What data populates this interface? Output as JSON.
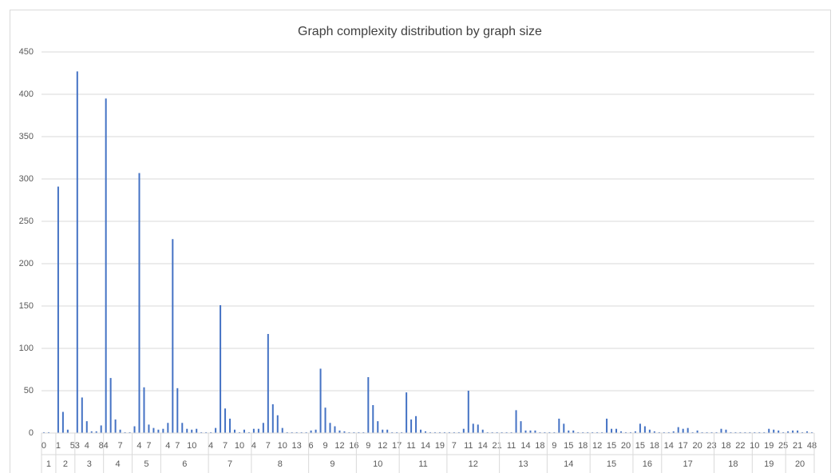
{
  "chart_data": {
    "type": "bar",
    "title": "Graph complexity distribution by graph size",
    "color": "#4472c4",
    "grid": true,
    "ylim": [
      0,
      450
    ],
    "yticks": [
      0,
      50,
      100,
      150,
      200,
      250,
      300,
      350,
      400,
      450
    ],
    "groups": [
      {
        "name": "1",
        "categories": [
          "0",
          null,
          null
        ],
        "values": [
          1,
          1,
          0
        ]
      },
      {
        "name": "2",
        "categories": [
          "1",
          null,
          null,
          "5"
        ],
        "values": [
          291,
          25,
          4,
          0
        ]
      },
      {
        "name": "3",
        "categories": [
          "3",
          null,
          "4",
          null,
          null,
          "8"
        ],
        "values": [
          427,
          42,
          14,
          2,
          2,
          9
        ]
      },
      {
        "name": "4",
        "categories": [
          "4",
          null,
          null,
          "7",
          null,
          null
        ],
        "values": [
          395,
          65,
          16,
          4,
          1,
          1
        ]
      },
      {
        "name": "5",
        "categories": [
          null,
          "4",
          null,
          "7",
          null,
          null
        ],
        "values": [
          8,
          307,
          54,
          10,
          6,
          4
        ]
      },
      {
        "name": "6",
        "categories": [
          null,
          "4",
          null,
          "7",
          null,
          null,
          "10",
          null,
          null,
          null
        ],
        "values": [
          5,
          12,
          229,
          53,
          12,
          5,
          4,
          5,
          1,
          1
        ]
      },
      {
        "name": "7",
        "categories": [
          "4",
          null,
          null,
          "7",
          null,
          null,
          "10",
          null,
          null
        ],
        "values": [
          1,
          6,
          151,
          29,
          17,
          4,
          1,
          4,
          1
        ]
      },
      {
        "name": "8",
        "categories": [
          "4",
          null,
          null,
          "7",
          null,
          null,
          "10",
          null,
          null,
          "13",
          null,
          null
        ],
        "values": [
          5,
          5,
          12,
          117,
          34,
          21,
          6,
          1,
          1,
          1,
          1,
          1
        ]
      },
      {
        "name": "9",
        "categories": [
          "6",
          null,
          null,
          "9",
          null,
          null,
          "12",
          null,
          null,
          "16"
        ],
        "values": [
          3,
          4,
          76,
          30,
          12,
          8,
          3,
          2,
          1,
          1
        ]
      },
      {
        "name": "10",
        "categories": [
          null,
          null,
          "9",
          null,
          null,
          "12",
          null,
          null,
          "17"
        ],
        "values": [
          1,
          1,
          66,
          33,
          14,
          4,
          4,
          1,
          1
        ]
      },
      {
        "name": "11",
        "categories": [
          null,
          null,
          "11",
          null,
          null,
          "14",
          null,
          null,
          "19",
          null
        ],
        "values": [
          1,
          48,
          16,
          20,
          4,
          2,
          1,
          1,
          1,
          1
        ]
      },
      {
        "name": "12",
        "categories": [
          null,
          "7",
          null,
          null,
          "11",
          null,
          null,
          "14",
          null,
          null,
          "21"
        ],
        "values": [
          1,
          1,
          1,
          5,
          50,
          11,
          10,
          4,
          1,
          1,
          1
        ]
      },
      {
        "name": "13",
        "categories": [
          null,
          null,
          "11",
          null,
          null,
          "14",
          null,
          null,
          "18",
          null
        ],
        "values": [
          1,
          1,
          1,
          27,
          14,
          3,
          3,
          3,
          1,
          1
        ]
      },
      {
        "name": "14",
        "categories": [
          null,
          "9",
          null,
          null,
          "15",
          null,
          null,
          "18",
          null
        ],
        "values": [
          1,
          1,
          17,
          11,
          3,
          3,
          1,
          1,
          1
        ]
      },
      {
        "name": "15",
        "categories": [
          null,
          "12",
          null,
          null,
          "15",
          null,
          null,
          "20",
          null
        ],
        "values": [
          1,
          1,
          1,
          17,
          5,
          5,
          2,
          1,
          1
        ]
      },
      {
        "name": "16",
        "categories": [
          null,
          "15",
          null,
          null,
          "18",
          null
        ],
        "values": [
          2,
          11,
          8,
          4,
          2,
          1
        ]
      },
      {
        "name": "17",
        "categories": [
          null,
          "14",
          null,
          null,
          "17",
          null,
          null,
          "20",
          null,
          null,
          "23"
        ],
        "values": [
          1,
          1,
          2,
          7,
          5,
          6,
          1,
          3,
          1,
          1,
          1
        ]
      },
      {
        "name": "18",
        "categories": [
          null,
          null,
          "18",
          null,
          null,
          "22",
          null,
          null
        ],
        "values": [
          1,
          5,
          4,
          1,
          1,
          1,
          1,
          1
        ]
      },
      {
        "name": "19",
        "categories": [
          "10",
          null,
          null,
          "19",
          null,
          null,
          "25"
        ],
        "values": [
          1,
          1,
          1,
          5,
          4,
          3,
          1
        ]
      },
      {
        "name": "20",
        "categories": [
          null,
          null,
          "21",
          null,
          null,
          "48"
        ],
        "values": [
          2,
          3,
          3,
          1,
          2,
          1
        ]
      }
    ]
  }
}
